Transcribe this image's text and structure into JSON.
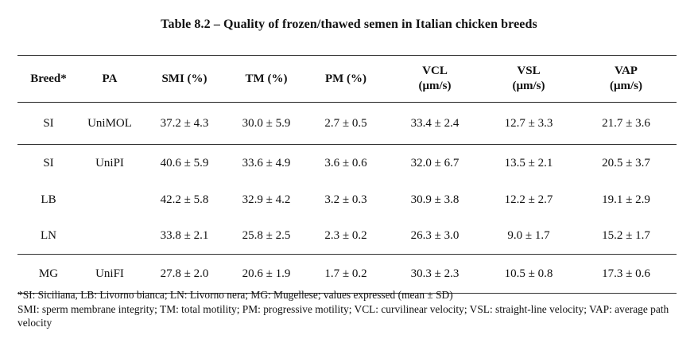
{
  "caption": "Table 8.2 – Quality of frozen/thawed semen in Italian chicken breeds",
  "columns": [
    {
      "line1": "Breed*",
      "line2": ""
    },
    {
      "line1": "PA",
      "line2": ""
    },
    {
      "line1": "SMI (%)",
      "line2": ""
    },
    {
      "line1": "TM (%)",
      "line2": ""
    },
    {
      "line1": "PM (%)",
      "line2": ""
    },
    {
      "line1": "VCL",
      "line2": "(μm/s)"
    },
    {
      "line1": "VSL",
      "line2": "(μm/s)"
    },
    {
      "line1": "VAP",
      "line2": "(μm/s)"
    }
  ],
  "rows": [
    [
      "SI",
      "UniMOL",
      "37.2 ± 4.3",
      "30.0 ± 5.9",
      "2.7 ± 0.5",
      "33.4 ± 2.4",
      "12.7 ± 3.3",
      "21.7 ± 3.6"
    ],
    [
      "SI",
      "UniPI",
      "40.6 ± 5.9",
      "33.6 ± 4.9",
      "3.6 ± 0.6",
      "32.0 ± 6.7",
      "13.5 ± 2.1",
      "20.5 ± 3.7"
    ],
    [
      "LB",
      "",
      "42.2 ± 5.8",
      "32.9 ± 4.2",
      "3.2 ± 0.3",
      "30.9 ± 3.8",
      "12.2 ± 2.7",
      "19.1 ± 2.9"
    ],
    [
      "LN",
      "",
      "33.8 ± 2.1",
      "25.8 ± 2.5",
      "2.3 ± 0.2",
      "26.3 ± 3.0",
      "9.0 ± 1.7",
      "15.2 ± 1.7"
    ],
    [
      "MG",
      "UniFI",
      "27.8 ± 2.0",
      "20.6 ± 1.9",
      "1.7 ± 0.2",
      "30.3 ± 2.3",
      "10.5 ± 0.8",
      "17.3 ± 0.6"
    ]
  ],
  "notes": {
    "line1": "*SI: Siciliana, LB: Livorno bianca; LN: Livorno nera; MG: Mugellese; values expressed (mean ± SD)",
    "line2": "SMI: sperm membrane integrity; TM: total motility; PM: progressive motility; VCL: curvilinear velocity; VSL: straight-line velocity; VAP: average path velocity"
  }
}
